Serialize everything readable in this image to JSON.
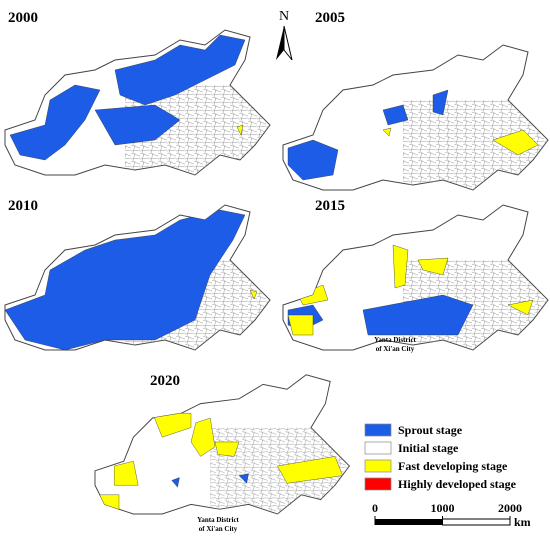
{
  "panels": [
    "2000",
    "2005",
    "2010",
    "2015",
    "2020"
  ],
  "north": "N",
  "annotations": [
    [
      "Yanta District",
      "of Xi'an City"
    ],
    [
      "Yanta District",
      "of Xi'an City"
    ]
  ],
  "legend": [
    {
      "label": "Sprout stage",
      "color": "#1c5ce6"
    },
    {
      "label": "Initial stage",
      "color": "#ffffff"
    },
    {
      "label": "Fast developing stage",
      "color": "#ffff00"
    },
    {
      "label": "Highly developed stage",
      "color": "#ff0000"
    }
  ],
  "scale": {
    "ticks": [
      0,
      1000,
      2000
    ],
    "unit": "km"
  }
}
